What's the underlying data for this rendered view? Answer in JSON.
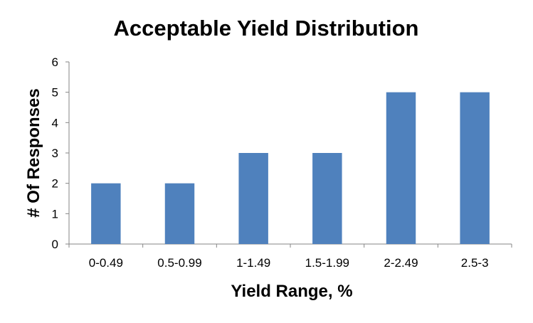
{
  "chart_data": {
    "type": "bar",
    "title": "Acceptable Yield Distribution",
    "xlabel": "Yield Range, %",
    "ylabel": "# Of Responses",
    "categories": [
      "0-0.49",
      "0.5-0.99",
      "1-1.49",
      "1.5-1.99",
      "2-2.49",
      "2.5-3"
    ],
    "values": [
      2,
      2,
      3,
      3,
      5,
      5
    ],
    "ylim": [
      0,
      6
    ],
    "yticks": [
      "0",
      "1",
      "2",
      "3",
      "4",
      "5",
      "6"
    ],
    "grid": false,
    "legend": "none",
    "bar_color": "#4F81BD",
    "axis_color": "#868686"
  }
}
